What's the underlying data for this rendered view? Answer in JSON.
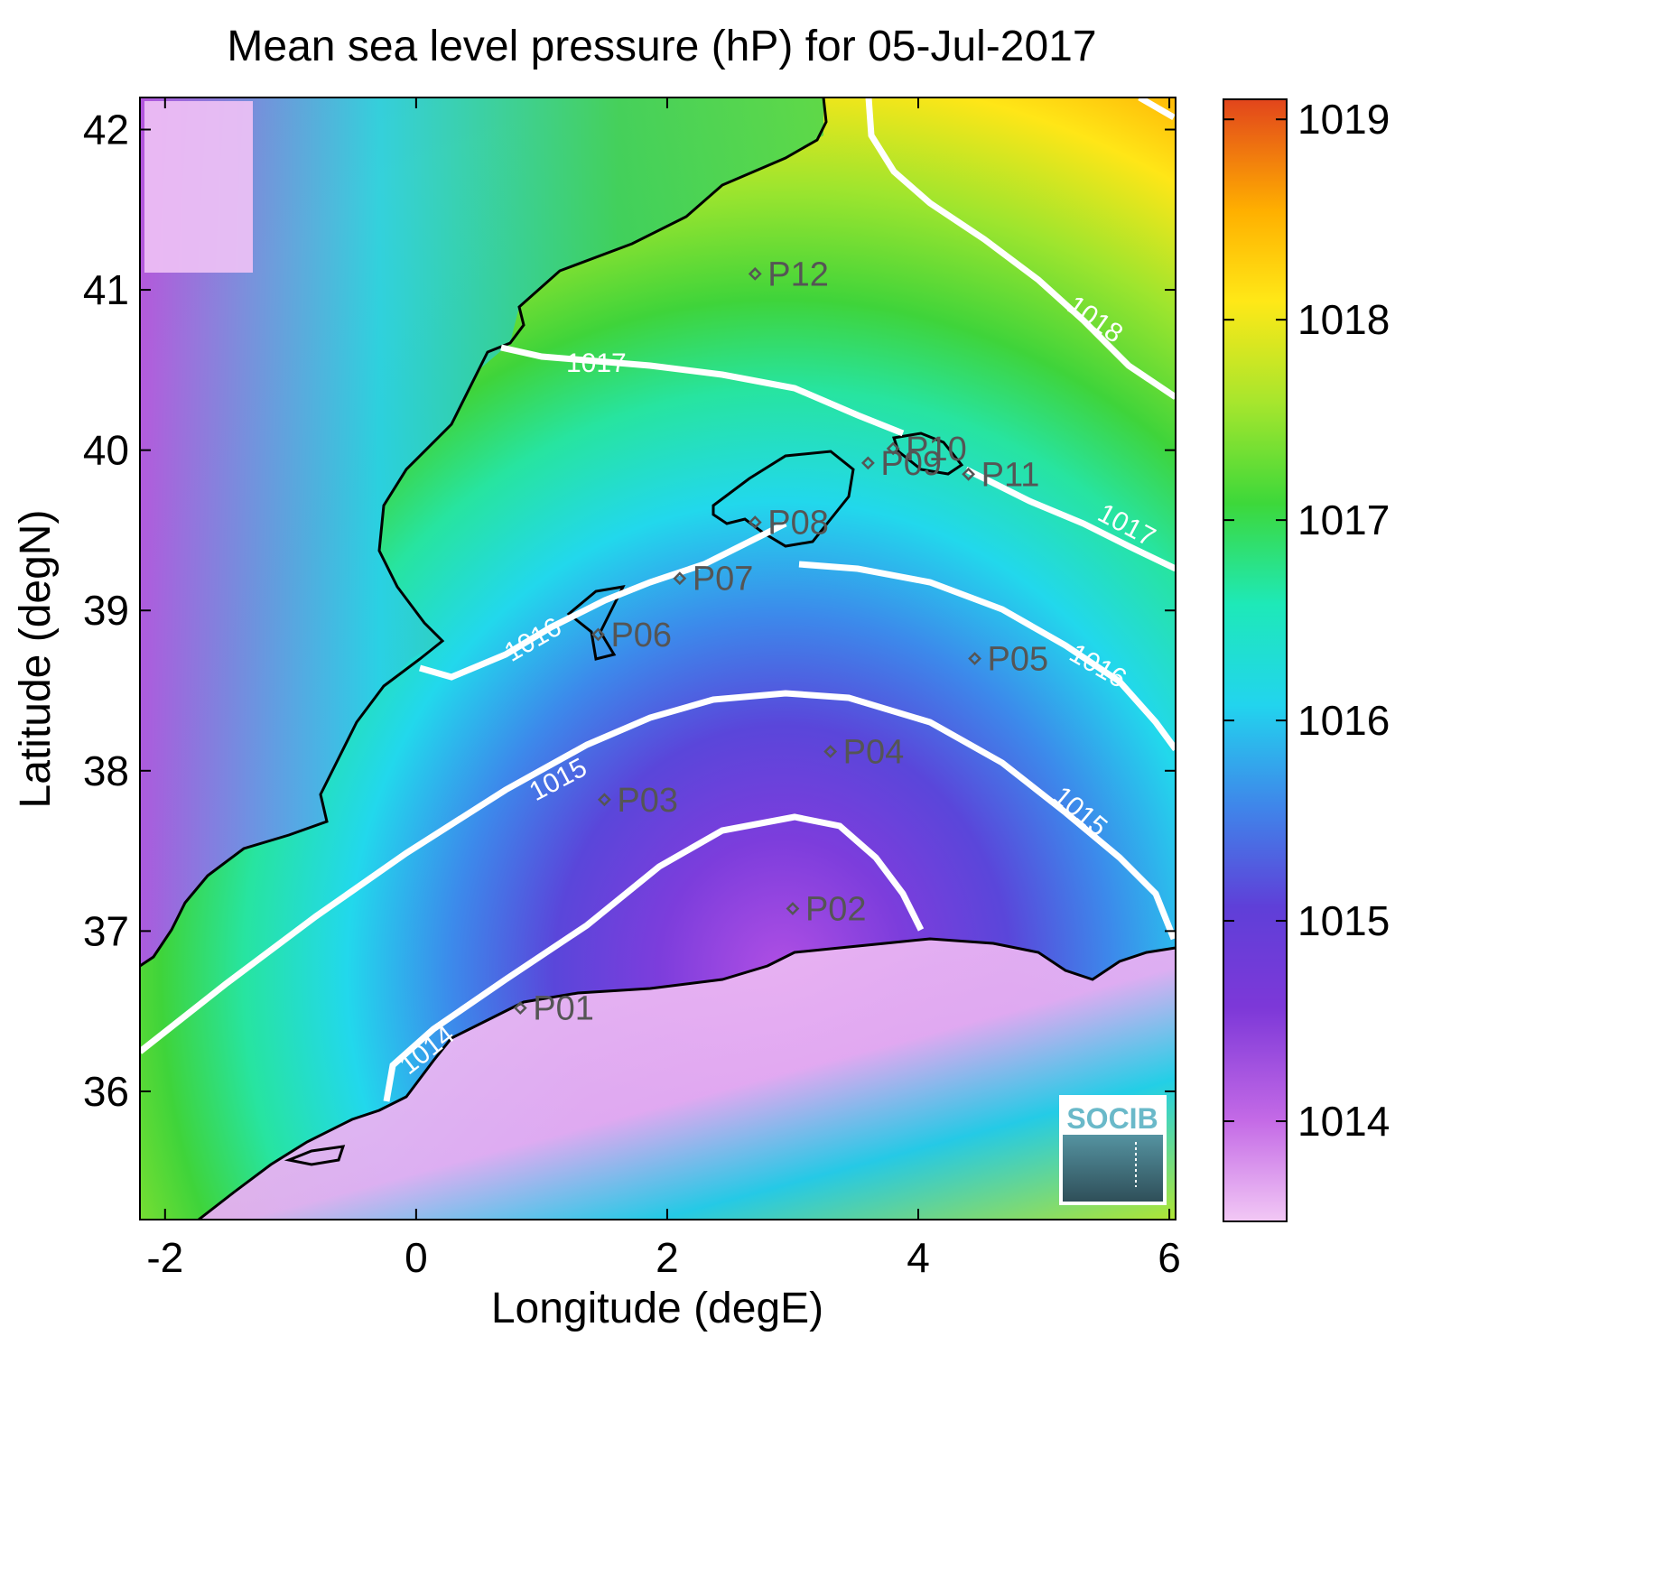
{
  "chart_data": {
    "type": "heatmap",
    "title": "Mean sea level pressure (hP) for 05-Jul-2017",
    "xlabel": "Longitude (degE)",
    "ylabel": "Latitude (degN)",
    "xlim": [
      -2.2,
      6.05
    ],
    "ylim": [
      35.2,
      42.2
    ],
    "xticks": [
      "-2",
      "0",
      "2",
      "4",
      "6"
    ],
    "yticks": [
      "36",
      "37",
      "38",
      "39",
      "40",
      "41",
      "42"
    ],
    "colorbar": {
      "range": [
        1013.5,
        1019.1
      ],
      "ticks": [
        "1014",
        "1015",
        "1016",
        "1017",
        "1018",
        "1019"
      ],
      "colormap": "purple-blue-cyan-green-yellow-orange-red"
    },
    "isobars": [
      {
        "value": 1014,
        "label": "1014"
      },
      {
        "value": 1015,
        "label": "1015"
      },
      {
        "value": 1016,
        "label": "1016"
      },
      {
        "value": 1017,
        "label": "1017"
      },
      {
        "value": 1018,
        "label": "1018"
      }
    ],
    "stations": [
      {
        "name": "P01",
        "lon": 0.83,
        "lat": 36.52
      },
      {
        "name": "P02",
        "lon": 3.0,
        "lat": 37.14
      },
      {
        "name": "P03",
        "lon": 1.5,
        "lat": 37.82
      },
      {
        "name": "P04",
        "lon": 3.3,
        "lat": 38.12
      },
      {
        "name": "P05",
        "lon": 4.45,
        "lat": 38.7
      },
      {
        "name": "P06",
        "lon": 1.45,
        "lat": 38.85
      },
      {
        "name": "P07",
        "lon": 2.1,
        "lat": 39.2
      },
      {
        "name": "P08",
        "lon": 2.7,
        "lat": 39.55
      },
      {
        "name": "P09",
        "lon": 3.6,
        "lat": 39.92
      },
      {
        "name": "P10",
        "lon": 3.8,
        "lat": 40.01
      },
      {
        "name": "P11",
        "lon": 4.4,
        "lat": 39.85
      },
      {
        "name": "P12",
        "lon": 2.7,
        "lat": 41.1
      }
    ],
    "logo_text": "SOCIB",
    "colors": {
      "isobar": "#ffffff",
      "coastline": "#000000",
      "station": "#555555"
    }
  }
}
